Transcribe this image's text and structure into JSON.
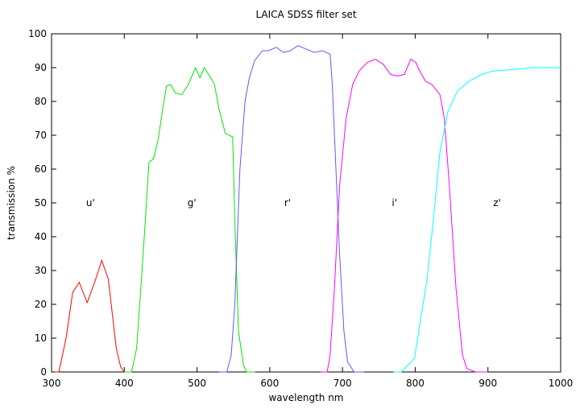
{
  "chart_data": {
    "type": "line",
    "title": "LAICA SDSS filter set",
    "x_label": "wavelength nm",
    "y_label": "transmission %",
    "xlim": [
      300,
      1000
    ],
    "xticks": [
      300,
      400,
      500,
      600,
      700,
      800,
      900,
      1000
    ],
    "ylim": [
      0,
      100
    ],
    "yticks": [
      0,
      10,
      20,
      30,
      40,
      50,
      60,
      70,
      80,
      90,
      100
    ],
    "series": [
      {
        "name": "u'",
        "color": "#ff0000",
        "x": [
          305,
          310,
          320,
          329,
          338,
          349,
          360,
          369,
          378,
          389,
          395,
          400,
          410
        ],
        "values": [
          0,
          0,
          10,
          23.5,
          26.5,
          20.5,
          27,
          33,
          27.5,
          7,
          1.5,
          0,
          0
        ]
      },
      {
        "name": "g'",
        "color": "#00e600",
        "x": [
          400,
          410,
          417,
          426,
          434,
          440,
          446,
          453,
          458,
          464,
          470,
          479,
          488,
          498,
          504,
          510,
          519,
          524,
          530,
          539,
          549,
          552,
          557,
          564,
          568,
          580
        ],
        "values": [
          0,
          0,
          7,
          35,
          62,
          63,
          68,
          78,
          84.5,
          85,
          82.5,
          82,
          85,
          90,
          87,
          90,
          87,
          85,
          78,
          70.5,
          69.5,
          45,
          12,
          2,
          0,
          0
        ]
      },
      {
        "name": "r'",
        "color": "#5a5aff",
        "x": [
          530,
          541,
          547,
          552,
          559,
          566,
          572,
          579,
          590,
          598,
          609,
          619,
          628,
          639,
          650,
          661,
          672,
          683,
          686,
          690,
          696,
          702,
          707,
          716,
          730
        ],
        "values": [
          0,
          0,
          5,
          20,
          60,
          80,
          87,
          92,
          95,
          95,
          96,
          94.5,
          95,
          96.5,
          95.5,
          94.5,
          95,
          94,
          85,
          65,
          35,
          12,
          3,
          0,
          0
        ]
      },
      {
        "name": "i'",
        "color": "#ff00ff",
        "x": [
          670,
          679,
          683,
          689,
          696,
          705,
          714,
          723,
          734,
          745,
          756,
          766,
          776,
          785,
          794,
          801,
          805,
          814,
          823,
          834,
          840,
          847,
          856,
          865,
          871,
          883,
          900
        ],
        "values": [
          0,
          0,
          5,
          25,
          55,
          75,
          85,
          89,
          91.5,
          92.5,
          91,
          88,
          87.5,
          88,
          92.5,
          91.5,
          89.5,
          86,
          85,
          82,
          75,
          55,
          25,
          5,
          1,
          0,
          0
        ]
      },
      {
        "name": "z'",
        "color": "#00ffff",
        "x": [
          770,
          781,
          790,
          799,
          807,
          816,
          825,
          834,
          845,
          858,
          874,
          891,
          907,
          938,
          960,
          1000
        ],
        "values": [
          0,
          0,
          2,
          4,
          15,
          27,
          45,
          65,
          77,
          83,
          86,
          88,
          89,
          89.5,
          90,
          90
        ]
      }
    ]
  }
}
